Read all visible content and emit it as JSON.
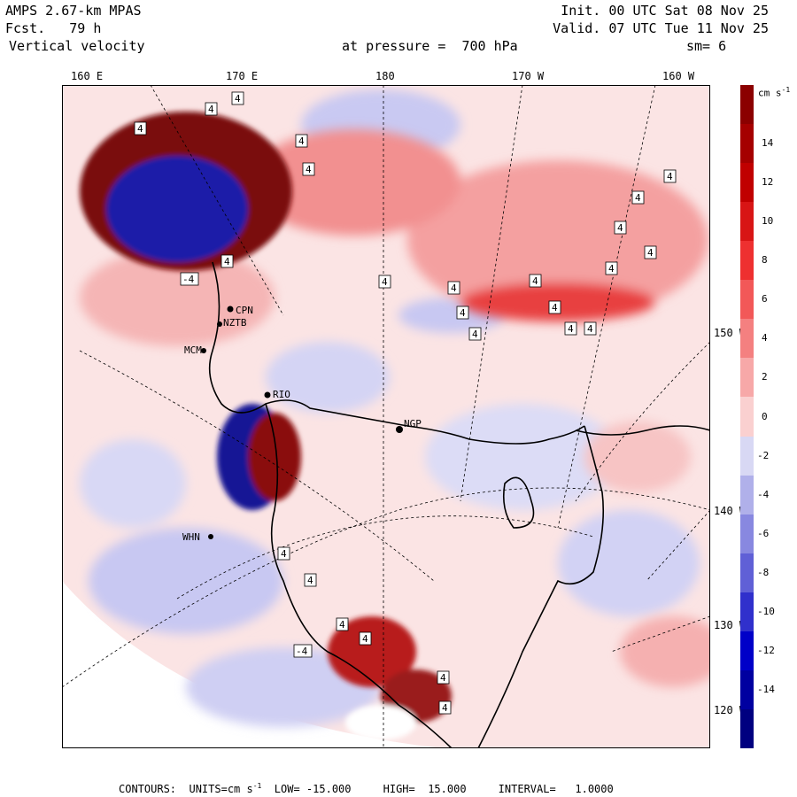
{
  "header": {
    "model": "AMPS 2.67-km MPAS",
    "forecast": "Fcst.   79 h",
    "field": "Vertical velocity",
    "init": "Init. 00 UTC Sat 08 Nov 25",
    "valid": "Valid. 07 UTC Tue 11 Nov 25",
    "level": "at pressure =  700 hPa",
    "smoothing": "sm= 6"
  },
  "longitude_labels": [
    "160 E",
    "170 E",
    "180",
    "170 W",
    "160 W"
  ],
  "latitude_labels": [
    "150 W",
    "140 W",
    "130 W",
    "120 W"
  ],
  "stations": [
    "CPN",
    "NZTB",
    "RIO",
    "MCM",
    "NGP",
    "WHN"
  ],
  "colorbar": {
    "units_label": "cm s",
    "units_exp": "-1",
    "ticks": [
      "14",
      "12",
      "10",
      "8",
      "6",
      "4",
      "2",
      "0",
      "-2",
      "-4",
      "-6",
      "-8",
      "-10",
      "-12",
      "-14"
    ],
    "colors": [
      "#8b0000",
      "#a50000",
      "#c00000",
      "#d81515",
      "#ee3030",
      "#f25858",
      "#f48080",
      "#f7a8a8",
      "#fad0d0",
      "#d8d8f4",
      "#b0b0ea",
      "#8888e0",
      "#6060d6",
      "#3030cc",
      "#0000c8",
      "#0000a0",
      "#000080"
    ]
  },
  "contour_labels": {
    "positive": "4",
    "negative": "-4"
  },
  "footer": {
    "prefix": "CONTOURS:  UNITS=cm s",
    "exp": "-1",
    "rest": "  LOW= -15.000     HIGH=  15.000     INTERVAL=   1.0000"
  }
}
